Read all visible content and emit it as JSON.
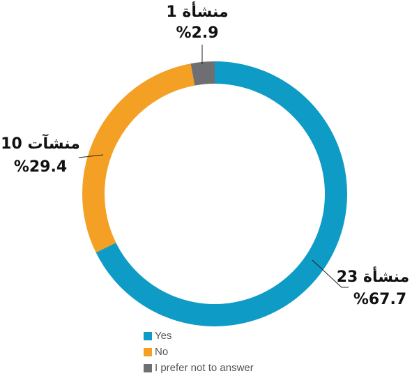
{
  "chart_data": {
    "type": "donut",
    "categories": [
      "Yes",
      "No",
      "I prefer not to answer"
    ],
    "values": [
      67.7,
      29.4,
      2.9
    ],
    "value_labels": [
      "%67.7",
      "%29.4",
      "%2.9"
    ],
    "counts": [
      23,
      10,
      1
    ],
    "count_labels": [
      "23 منشأة",
      "10 منشآت",
      "1 منشأة"
    ],
    "colors": [
      "#0e9bc6",
      "#f3a024",
      "#6e6f72"
    ],
    "legend": "bottom"
  }
}
